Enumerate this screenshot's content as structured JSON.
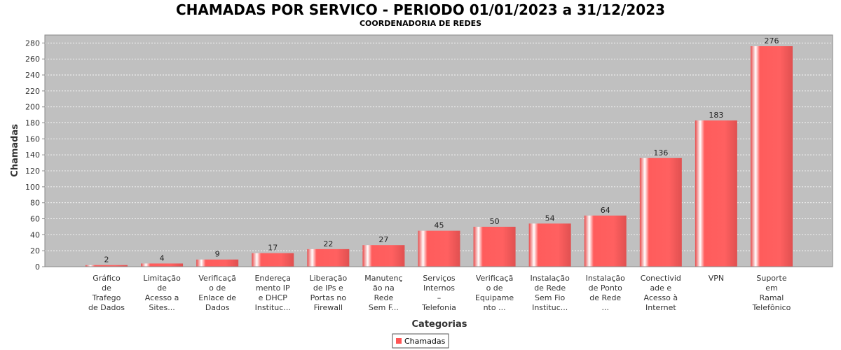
{
  "chart_data": {
    "type": "bar",
    "title": "CHAMADAS POR SERVICO - PERIODO 01/01/2023 a 31/12/2023",
    "subtitle": "COORDENADORIA DE REDES",
    "xlabel": "Categorias",
    "ylabel": "Chamadas",
    "ylim": [
      0,
      290
    ],
    "yticks": [
      0,
      20,
      40,
      60,
      80,
      100,
      120,
      140,
      160,
      180,
      200,
      220,
      240,
      260,
      280
    ],
    "grid": true,
    "legend_position": "bottom",
    "categories": [
      [
        "Gráfico",
        "de",
        "Trafego",
        "de Dados"
      ],
      [
        "Limitação",
        "de",
        "Acesso a",
        "Sites..."
      ],
      [
        "Verificaçã",
        "o de",
        "Enlace de",
        "Dados"
      ],
      [
        "Endereça",
        "mento IP",
        "e DHCP",
        "Instituc..."
      ],
      [
        "Liberação",
        "de IPs e",
        "Portas no",
        "Firewall"
      ],
      [
        "Manutenç",
        "ão na",
        "Rede",
        "Sem F..."
      ],
      [
        "Serviços",
        "Internos",
        "–",
        "Telefonia"
      ],
      [
        "Verificaçã",
        "o de",
        "Equipame",
        "nto ..."
      ],
      [
        "Instalação",
        "de Rede",
        "Sem Fio",
        "Instituc..."
      ],
      [
        "Instalação",
        "de Ponto",
        "de Rede",
        "..."
      ],
      [
        "Conectivid",
        "ade e",
        "Acesso à",
        "Internet"
      ],
      [
        "VPN"
      ],
      [
        "Suporte",
        "em",
        "Ramal",
        "Telefônico"
      ]
    ],
    "series": [
      {
        "name": "Chamadas",
        "color": "#ff5555",
        "values": [
          2,
          4,
          9,
          17,
          22,
          27,
          45,
          50,
          54,
          64,
          136,
          183,
          276
        ]
      }
    ],
    "colors": {
      "plot_background": "#c0c0c0",
      "bar": "#ff5555",
      "gridline": "#ffffff"
    }
  }
}
